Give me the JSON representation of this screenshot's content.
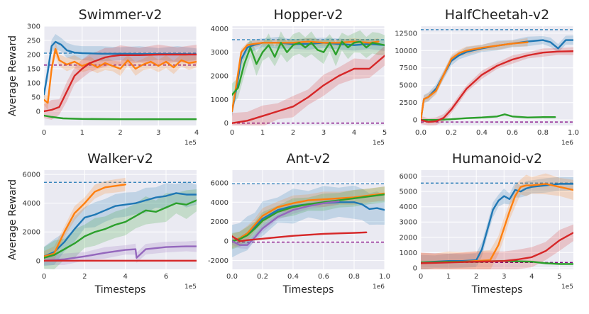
{
  "colors": {
    "blue": "#1f77b4",
    "orange": "#ff7f0e",
    "green": "#2ca02c",
    "red": "#d62728",
    "purple": "#9467bd",
    "refpurple": "#800080"
  },
  "chart_data": [
    {
      "type": "line",
      "title": "Swimmer-v2",
      "ylabel": "Average Reward",
      "xlabel": "",
      "xlim": [
        0,
        4
      ],
      "ylim": [
        -50,
        300
      ],
      "xticks": [
        "0",
        "1",
        "2",
        "3",
        "4"
      ],
      "yticks": [
        "0",
        "50",
        "100",
        "150",
        "200",
        "250",
        "300"
      ],
      "xscale": "1e5",
      "reference_lines": [
        {
          "color": "blue",
          "value": 205
        },
        {
          "color": "purple",
          "value": 163
        }
      ],
      "series": [
        {
          "name": "blue",
          "x": [
            0,
            0.1,
            0.2,
            0.3,
            0.45,
            0.6,
            0.8,
            1,
            1.5,
            2,
            2.5,
            3,
            3.5,
            4
          ],
          "values": [
            60,
            140,
            230,
            245,
            235,
            215,
            207,
            205,
            203,
            203,
            202,
            202,
            202,
            201
          ],
          "band": 28
        },
        {
          "name": "orange",
          "x": [
            0,
            0.1,
            0.2,
            0.3,
            0.4,
            0.6,
            0.8,
            1,
            1.2,
            1.4,
            1.6,
            1.8,
            2,
            2.2,
            2.4,
            2.6,
            2.8,
            3,
            3.2,
            3.4,
            3.6,
            3.8,
            4
          ],
          "values": [
            40,
            30,
            150,
            220,
            180,
            165,
            175,
            160,
            170,
            155,
            170,
            160,
            150,
            180,
            150,
            165,
            175,
            160,
            175,
            155,
            180,
            170,
            175
          ],
          "band": 25
        },
        {
          "name": "red",
          "x": [
            0,
            0.2,
            0.4,
            0.6,
            0.8,
            1,
            1.2,
            1.4,
            1.6,
            1.8,
            2,
            2.5,
            3,
            3.5,
            4
          ],
          "values": [
            0,
            5,
            15,
            70,
            125,
            150,
            170,
            180,
            190,
            195,
            198,
            198,
            200,
            200,
            200
          ],
          "band": 35
        },
        {
          "name": "green",
          "x": [
            0,
            0.2,
            0.5,
            1,
            2,
            3,
            4
          ],
          "values": [
            -15,
            -20,
            -25,
            -27,
            -28,
            -28,
            -28
          ],
          "band": 4
        }
      ]
    },
    {
      "type": "line",
      "title": "Hopper-v2",
      "ylabel": "",
      "xlabel": "",
      "xlim": [
        0,
        5
      ],
      "ylim": [
        -100,
        4100
      ],
      "xticks": [
        "0",
        "1",
        "2",
        "3",
        "4",
        "5"
      ],
      "yticks": [
        "0",
        "1000",
        "2000",
        "3000",
        "4000"
      ],
      "xscale": "1e5",
      "reference_lines": [
        {
          "color": "blue",
          "value": 3530
        },
        {
          "color": "purple",
          "value": 0
        }
      ],
      "series": [
        {
          "name": "blue",
          "x": [
            0,
            0.15,
            0.3,
            0.5,
            0.7,
            1,
            1.5,
            2,
            2.5,
            3,
            3.5,
            4,
            4.5,
            5
          ],
          "values": [
            500,
            1500,
            2700,
            3200,
            3300,
            3400,
            3400,
            3350,
            3350,
            3400,
            3350,
            3300,
            3350,
            3300
          ],
          "band": 250
        },
        {
          "name": "orange",
          "x": [
            0,
            0.15,
            0.3,
            0.5,
            0.7,
            1,
            1.5,
            2,
            2.5,
            3,
            3.5,
            4,
            4.5,
            4.8
          ],
          "values": [
            500,
            1700,
            3000,
            3300,
            3350,
            3400,
            3400,
            3400,
            3450,
            3400,
            3400,
            3450,
            3400,
            3450
          ],
          "band": 150
        },
        {
          "name": "green",
          "x": [
            0,
            0.2,
            0.4,
            0.6,
            0.8,
            1,
            1.2,
            1.4,
            1.6,
            1.8,
            2,
            2.2,
            2.4,
            2.6,
            2.8,
            3,
            3.2,
            3.4,
            3.6,
            3.8,
            4,
            4.2,
            4.4,
            4.6,
            4.8,
            5
          ],
          "values": [
            1200,
            1500,
            2500,
            3200,
            2500,
            3000,
            3300,
            2800,
            3400,
            3000,
            3300,
            3400,
            3200,
            3400,
            3100,
            3000,
            3400,
            2900,
            3450,
            3200,
            3400,
            3450,
            3200,
            3400,
            3350,
            3300
          ],
          "band": 500
        },
        {
          "name": "red",
          "x": [
            0,
            0.5,
            1,
            1.5,
            2,
            2.5,
            3,
            3.5,
            4,
            4.5,
            5
          ],
          "values": [
            0,
            100,
            300,
            500,
            700,
            1100,
            1600,
            2000,
            2300,
            2300,
            2850
          ],
          "band": 450
        }
      ]
    },
    {
      "type": "line",
      "title": "HalfCheetah-v2",
      "ylabel": "",
      "xlabel": "",
      "xlim": [
        0,
        1
      ],
      "ylim": [
        -800,
        13500
      ],
      "xticks": [
        "0.0",
        "0.2",
        "0.4",
        "0.6",
        "0.8",
        "1.0"
      ],
      "yticks": [
        "0",
        "2500",
        "5000",
        "7500",
        "10000",
        "12500"
      ],
      "xscale": "1e6",
      "reference_lines": [
        {
          "color": "blue",
          "value": 13000
        },
        {
          "color": "purple",
          "value": -300
        }
      ],
      "series": [
        {
          "name": "blue",
          "x": [
            0,
            0.02,
            0.05,
            0.1,
            0.15,
            0.2,
            0.25,
            0.3,
            0.4,
            0.5,
            0.6,
            0.7,
            0.8,
            0.85,
            0.9,
            0.95,
            1
          ],
          "values": [
            0,
            3000,
            3300,
            4500,
            6500,
            8500,
            9300,
            9800,
            10300,
            10700,
            11000,
            11300,
            11500,
            11200,
            10300,
            11500,
            11500
          ],
          "band": 700
        },
        {
          "name": "orange",
          "x": [
            0,
            0.02,
            0.05,
            0.1,
            0.15,
            0.2,
            0.25,
            0.3,
            0.4,
            0.5,
            0.6,
            0.7
          ],
          "values": [
            0,
            3000,
            3300,
            4200,
            6500,
            8800,
            9600,
            10000,
            10400,
            10700,
            11000,
            11200
          ],
          "band": 600
        },
        {
          "name": "red",
          "x": [
            0,
            0.05,
            0.1,
            0.15,
            0.2,
            0.25,
            0.3,
            0.4,
            0.5,
            0.6,
            0.7,
            0.8,
            0.9,
            1
          ],
          "values": [
            0,
            -300,
            -200,
            300,
            1500,
            3000,
            4500,
            6500,
            7800,
            8700,
            9300,
            9700,
            9850,
            9900
          ],
          "band": 600
        },
        {
          "name": "green",
          "x": [
            0,
            0.1,
            0.2,
            0.3,
            0.4,
            0.5,
            0.55,
            0.6,
            0.7,
            0.8,
            0.88
          ],
          "values": [
            0,
            0,
            100,
            250,
            350,
            500,
            800,
            500,
            350,
            400,
            400
          ],
          "band": 150
        }
      ]
    },
    {
      "type": "line",
      "title": "Walker-v2",
      "ylabel": "Average Reward",
      "xlabel": "Timesteps",
      "xlim": [
        0,
        7.5
      ],
      "ylim": [
        -600,
        6300
      ],
      "xticks": [
        "0",
        "2",
        "4",
        "6"
      ],
      "yticks": [
        "0",
        "2000",
        "4000",
        "6000"
      ],
      "xscale": "1e5",
      "reference_lines": [
        {
          "color": "blue",
          "value": 5450
        }
      ],
      "series": [
        {
          "name": "orange",
          "x": [
            0,
            0.5,
            1,
            1.5,
            2,
            2.5,
            3,
            3.5,
            4
          ],
          "values": [
            300,
            500,
            2000,
            3300,
            4000,
            4800,
            5100,
            5200,
            5300
          ],
          "band": 500
        },
        {
          "name": "blue",
          "x": [
            0,
            0.5,
            1,
            1.5,
            2,
            2.5,
            3,
            3.5,
            4,
            4.5,
            5,
            5.5,
            6,
            6.5,
            7,
            7.5
          ],
          "values": [
            300,
            600,
            1300,
            2200,
            3000,
            3200,
            3500,
            3800,
            3900,
            4000,
            4200,
            4400,
            4500,
            4700,
            4600,
            4600
          ],
          "band": 900
        },
        {
          "name": "green",
          "x": [
            0,
            0.5,
            1,
            1.5,
            2,
            2.5,
            3,
            3.5,
            4,
            4.5,
            5,
            5.5,
            6,
            6.5,
            7,
            7.5
          ],
          "values": [
            200,
            400,
            800,
            1200,
            1700,
            2000,
            2200,
            2500,
            2700,
            3100,
            3500,
            3400,
            3700,
            4000,
            3900,
            4200
          ],
          "band": 1000
        },
        {
          "name": "purple",
          "x": [
            0,
            1,
            2,
            3,
            4,
            4.5,
            4.55,
            5,
            6,
            7,
            7.5
          ],
          "values": [
            0,
            100,
            300,
            550,
            750,
            800,
            200,
            800,
            950,
            1000,
            1000
          ],
          "band": 400
        },
        {
          "name": "red",
          "x": [
            0,
            1,
            2,
            3,
            4,
            5,
            6,
            7,
            7.5
          ],
          "values": [
            0,
            0,
            0,
            0,
            0,
            0,
            0,
            0,
            0
          ],
          "band": 30
        }
      ]
    },
    {
      "type": "line",
      "title": "Ant-v2",
      "ylabel": "",
      "xlabel": "Timesteps",
      "xlim": [
        0,
        1
      ],
      "ylim": [
        -2900,
        7300
      ],
      "xticks": [
        "0.0",
        "0.2",
        "0.4",
        "0.6",
        "0.8",
        "1.0"
      ],
      "yticks": [
        "-2000",
        "0",
        "2000",
        "4000",
        "6000"
      ],
      "xscale": "1e6",
      "reference_lines": [
        {
          "color": "blue",
          "value": 5900
        },
        {
          "color": "purple",
          "value": -100
        }
      ],
      "series": [
        {
          "name": "blue",
          "x": [
            0,
            0.05,
            0.1,
            0.15,
            0.2,
            0.3,
            0.4,
            0.5,
            0.6,
            0.7,
            0.8,
            0.85,
            0.9,
            0.95,
            1
          ],
          "values": [
            0,
            300,
            800,
            1500,
            2300,
            3200,
            3600,
            3800,
            3900,
            4000,
            4000,
            3800,
            3300,
            3400,
            3200
          ],
          "band": 1800
        },
        {
          "name": "orange",
          "x": [
            0,
            0.05,
            0.1,
            0.15,
            0.2,
            0.3,
            0.4,
            0.5,
            0.6,
            0.7,
            0.8,
            0.9,
            1
          ],
          "values": [
            0,
            300,
            800,
            1700,
            2600,
            3500,
            3900,
            4200,
            4300,
            4400,
            4500,
            4700,
            4900
          ],
          "band": 800
        },
        {
          "name": "green",
          "x": [
            0,
            0.05,
            0.1,
            0.15,
            0.2,
            0.3,
            0.4,
            0.5,
            0.6,
            0.7,
            0.8,
            0.9,
            1
          ],
          "values": [
            0,
            200,
            600,
            1300,
            2100,
            3000,
            3500,
            3800,
            4000,
            4200,
            4400,
            4600,
            4800
          ],
          "band": 900
        },
        {
          "name": "purple",
          "x": [
            0,
            0.05,
            0.1,
            0.15,
            0.2,
            0.3,
            0.4,
            0.5,
            0.6,
            0.7
          ],
          "values": [
            0,
            -400,
            -400,
            400,
            1300,
            2500,
            3200,
            3600,
            3900,
            4100
          ],
          "band": 400
        },
        {
          "name": "red",
          "x": [
            0,
            0.05,
            0.1,
            0.2,
            0.3,
            0.4,
            0.5,
            0.6,
            0.7,
            0.8,
            0.88
          ],
          "values": [
            500,
            0,
            100,
            250,
            400,
            550,
            650,
            750,
            800,
            850,
            900
          ],
          "band": 100
        }
      ]
    },
    {
      "type": "line",
      "title": "Humanoid-v2",
      "ylabel": "",
      "xlabel": "Timesteps",
      "xlim": [
        0,
        5.5
      ],
      "ylim": [
        -100,
        6400
      ],
      "xticks": [
        "0",
        "1",
        "2",
        "3",
        "4",
        "5"
      ],
      "yticks": [
        "0",
        "1000",
        "2000",
        "3000",
        "4000",
        "5000",
        "6000"
      ],
      "xscale": "1e5",
      "reference_lines": [
        {
          "color": "blue",
          "value": 5550
        },
        {
          "color": "purple",
          "value": 350
        }
      ],
      "series": [
        {
          "name": "blue",
          "x": [
            0,
            0.5,
            1,
            1.5,
            2,
            2.2,
            2.4,
            2.6,
            2.8,
            3,
            3.2,
            3.4,
            3.6,
            3.8,
            4,
            4.5,
            5,
            5.5
          ],
          "values": [
            350,
            400,
            450,
            450,
            500,
            1200,
            2500,
            3800,
            4400,
            4700,
            4500,
            5100,
            5000,
            5200,
            5300,
            5400,
            5500,
            5500
          ],
          "band": 500
        },
        {
          "name": "orange",
          "x": [
            0,
            0.5,
            1,
            1.5,
            2,
            2.5,
            2.8,
            3,
            3.2,
            3.4,
            3.6,
            3.8,
            4,
            4.5,
            5,
            5.5
          ],
          "values": [
            300,
            350,
            400,
            400,
            450,
            500,
            1500,
            2600,
            3700,
            4700,
            5300,
            5400,
            5400,
            5500,
            5300,
            5100
          ],
          "band": 700
        },
        {
          "name": "red",
          "x": [
            0,
            1,
            2,
            3,
            3.5,
            4,
            4.5,
            5,
            5.5
          ],
          "values": [
            300,
            350,
            400,
            450,
            550,
            700,
            1100,
            1800,
            2300
          ],
          "band": 700
        },
        {
          "name": "green",
          "x": [
            0,
            1,
            2,
            3,
            4,
            4.5,
            5,
            5.5
          ],
          "values": [
            350,
            400,
            400,
            450,
            400,
            300,
            250,
            250
          ],
          "band": 80
        }
      ]
    }
  ]
}
